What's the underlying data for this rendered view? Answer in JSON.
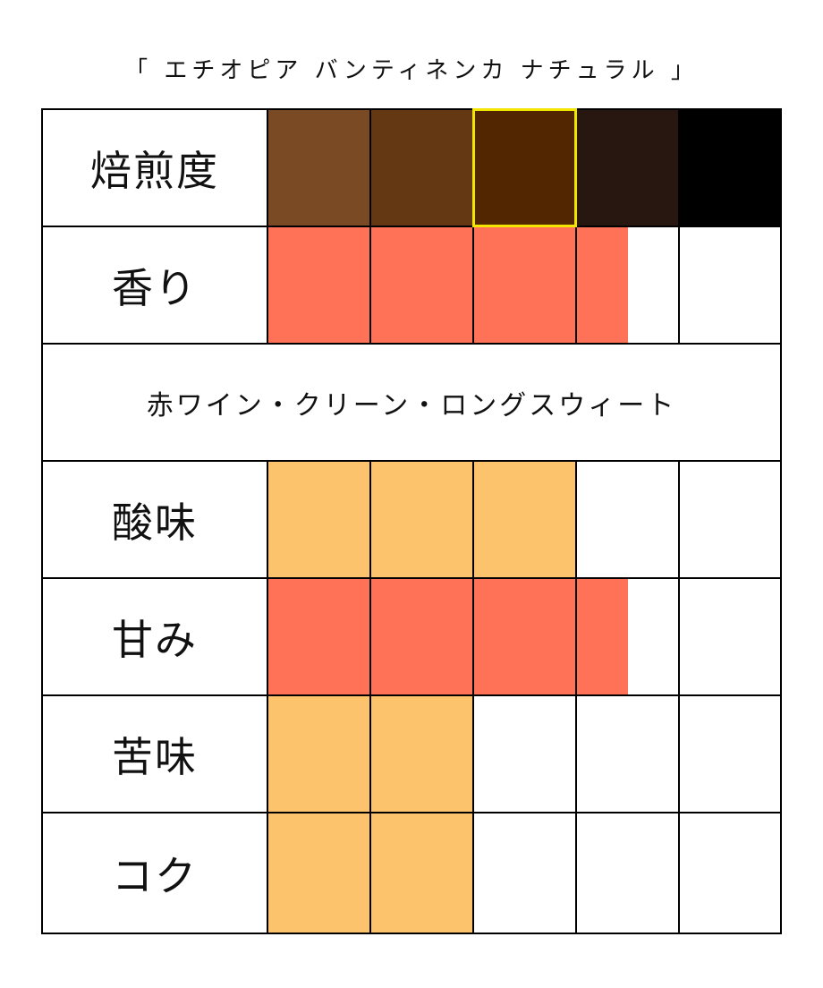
{
  "title": "「 エチオピア バンティネンカ ナチュラル 」",
  "roast": {
    "label": "焙煎度",
    "swatches": [
      "#7a4a24",
      "#633812",
      "#512600",
      "#281710",
      "#000000"
    ],
    "selected_index": 2,
    "highlight_color": "#f2e600"
  },
  "aroma": {
    "label": "香り",
    "value": 3.5,
    "color": "#ff7257"
  },
  "flavor_note": "赤ワイン・クリーン・ロングスウィート",
  "acidity": {
    "label": "酸味",
    "value": 3,
    "color": "#fdc26c"
  },
  "sweetness": {
    "label": "甘み",
    "value": 3.5,
    "color": "#ff7257"
  },
  "bitterness": {
    "label": "苦味",
    "value": 2,
    "color": "#fdc26c"
  },
  "body": {
    "label": "コク",
    "value": 2,
    "color": "#fdc26c"
  },
  "scale_max": 5
}
